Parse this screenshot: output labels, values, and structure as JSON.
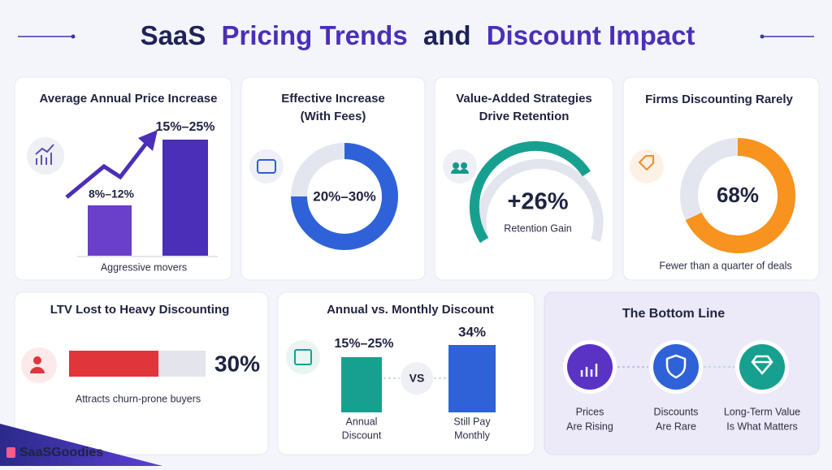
{
  "title": {
    "parts": [
      "SaaS",
      "Pricing Trends",
      "and",
      "Discount Impact"
    ]
  },
  "cards": {
    "price_increase": {
      "title": "Average Annual Price Increase",
      "low_label": "8%–12%",
      "high_label": "15%–25%",
      "caption": "Aggressive movers"
    },
    "effective_increase": {
      "title_lines": [
        "Effective Increase",
        "(With Fees)"
      ],
      "label": "20%–30%"
    },
    "value_added": {
      "title_lines": [
        "Value-Added Strategies",
        "Drive Retention"
      ],
      "label": "+26%",
      "caption": "Retention Gain"
    },
    "firms_discounting": {
      "title": "Firms Discounting Rarely",
      "value": 68,
      "label": "68%",
      "caption": "Fewer than a quarter of deals"
    },
    "ltv_lost": {
      "title": "LTV Lost to Heavy Discounting",
      "label": "30%",
      "caption": "Attracts churn-prone buyers"
    },
    "annual_monthly": {
      "title": "Annual vs. Monthly Discount",
      "annual_label": "15%–25%",
      "monthly_label": "34%",
      "vs": "VS",
      "annual_caption": [
        "Annual",
        "Discount"
      ],
      "monthly_caption": [
        "Still Pay",
        "Monthly"
      ]
    },
    "bottom_line": {
      "title": "The Bottom Line",
      "steps": [
        [
          "Prices",
          "Are Rising"
        ],
        [
          "Discounts",
          "Are Rare"
        ],
        [
          "Long-Term Value",
          "Is What Matters"
        ]
      ]
    }
  },
  "footer": {
    "brand": "SaaSGoodies"
  }
}
